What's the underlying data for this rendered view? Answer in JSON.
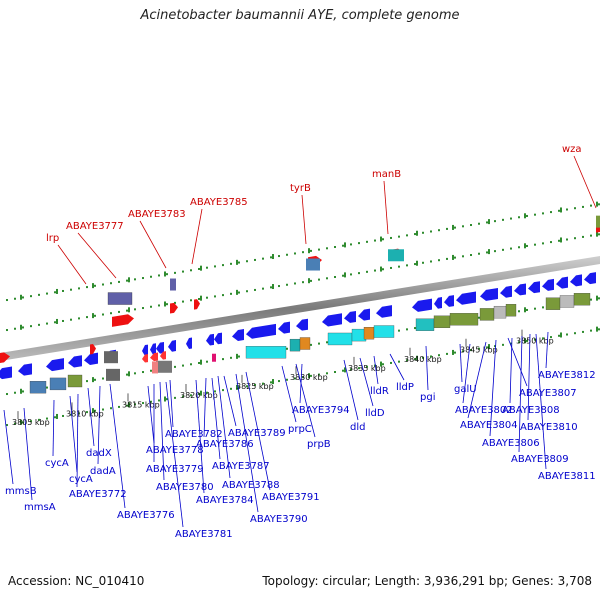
{
  "title": "Acinetobacter baumannii AYE, complete genome",
  "footer": {
    "accession": "Accession: NC_010410",
    "summary": "Topology: circular; Length: 3,936,291 bp; Genes: 3,708"
  },
  "colors": {
    "label_reverse": "#0000cc",
    "label_forward": "#cc0000",
    "backbone": "#888888",
    "tick_green": "#2e8b2e",
    "gene_blue": "#1a1aee",
    "gene_red": "#ee1111"
  },
  "scale": {
    "kbp_ticks": [
      "3805 kbp",
      "3810 kbp",
      "3815 kbp",
      "3820 kbp",
      "3825 kbp",
      "3830 kbp",
      "3835 kbp",
      "3840 kbp",
      "3845 kbp",
      "3850 kbp"
    ]
  },
  "forward_genes": [
    "lrp",
    "ABAYE3777",
    "ABAYE3783",
    "ABAYE3785",
    "tyrB",
    "manB",
    "wza"
  ],
  "reverse_genes": [
    "mmsB",
    "mmsA",
    "cycA",
    "cycA",
    "ABAYE3772",
    "dadX",
    "dadA",
    "ABAYE3776",
    "ABAYE3778",
    "ABAYE3779",
    "ABAYE3780",
    "ABAYE3781",
    "ABAYE3782",
    "ABAYE3784",
    "ABAYE3786",
    "ABAYE3787",
    "ABAYE3788",
    "ABAYE3789",
    "ABAYE3790",
    "ABAYE3791",
    "prpC",
    "prpB",
    "ABAYE3794",
    "dld",
    "lldD",
    "lldR",
    "lldP",
    "pgi",
    "galU",
    "ABAYE3802",
    "ABAYE3804",
    "ABAYE3806",
    "ABAYE3807",
    "ABAYE3808",
    "ABAYE3809",
    "ABAYE3810",
    "ABAYE3811",
    "ABAYE3812"
  ]
}
